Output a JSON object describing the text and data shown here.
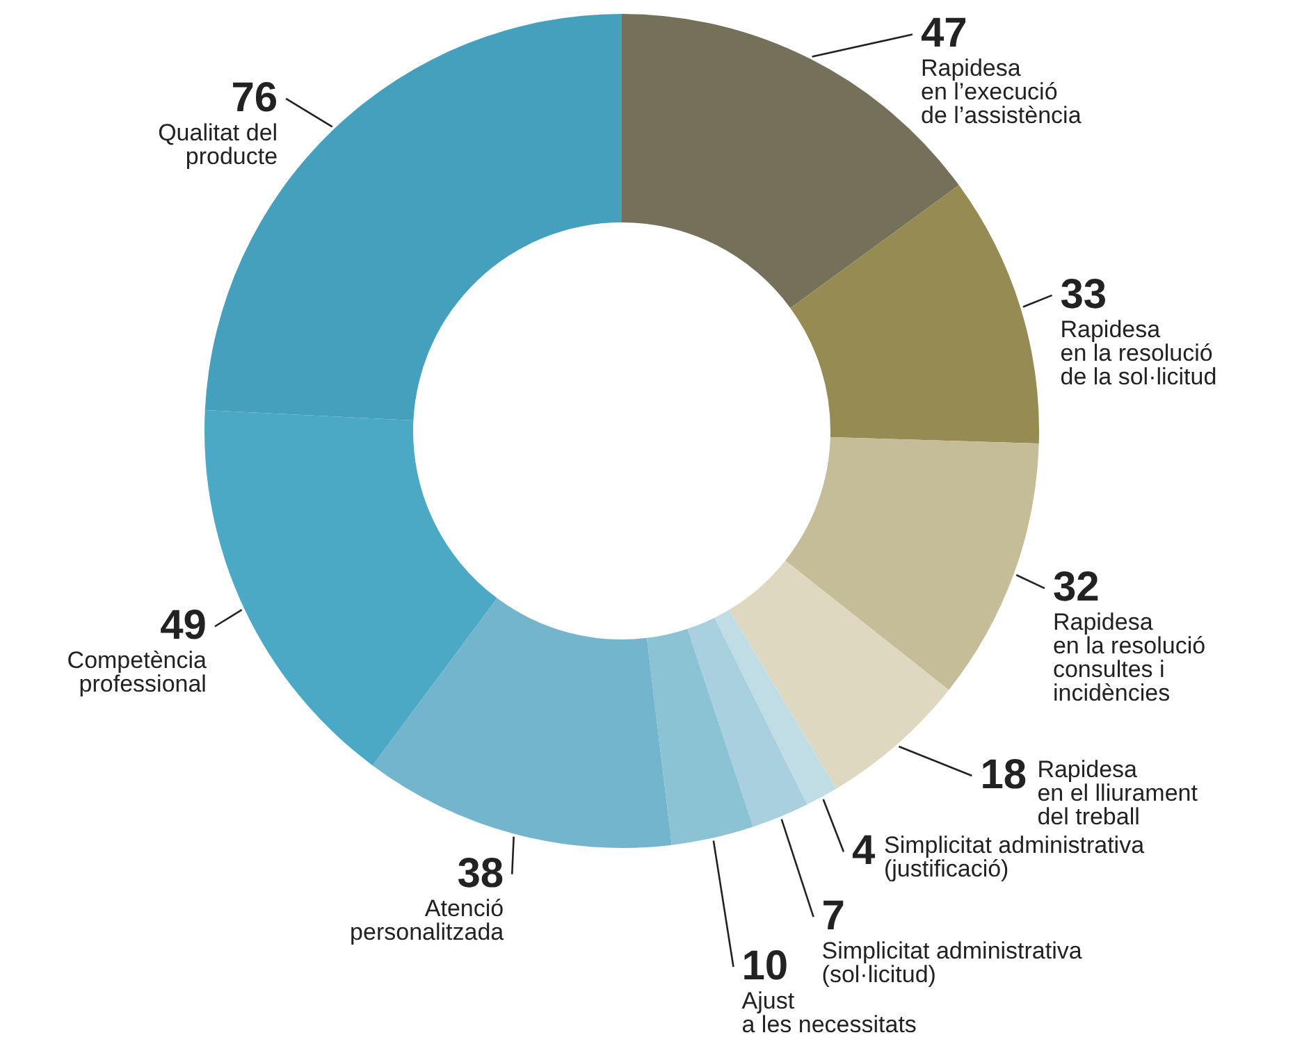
{
  "chart_data": {
    "type": "donut",
    "data_labels": true,
    "categories": [
      "Rapidesa\nen l’execució\nde l’assistència",
      "Rapidesa\nen la resolució\nde la sol·licitud",
      "Rapidesa\nen la resolució\nconsultes i\nincidències",
      "Rapidesa\nen el lliurament\ndel treball",
      "Simplicitat administrativa\n(justificació)",
      "Simplicitat administrativa\n(sol·licitud)",
      "Ajust\na les necessitats",
      "Atenció\npersonalitzada",
      "Competència\nprofessional",
      "Qualitat del\nproducte"
    ],
    "values": [
      47,
      33,
      32,
      18,
      4,
      7,
      10,
      38,
      49,
      76
    ],
    "colors": [
      "#74705a",
      "#968b52",
      "#c4bd98",
      "#ddd8bf",
      "#c0dde6",
      "#a8d0de",
      "#8bc3d4",
      "#72b5cc",
      "#4ba9c6",
      "#44a0bd"
    ]
  }
}
